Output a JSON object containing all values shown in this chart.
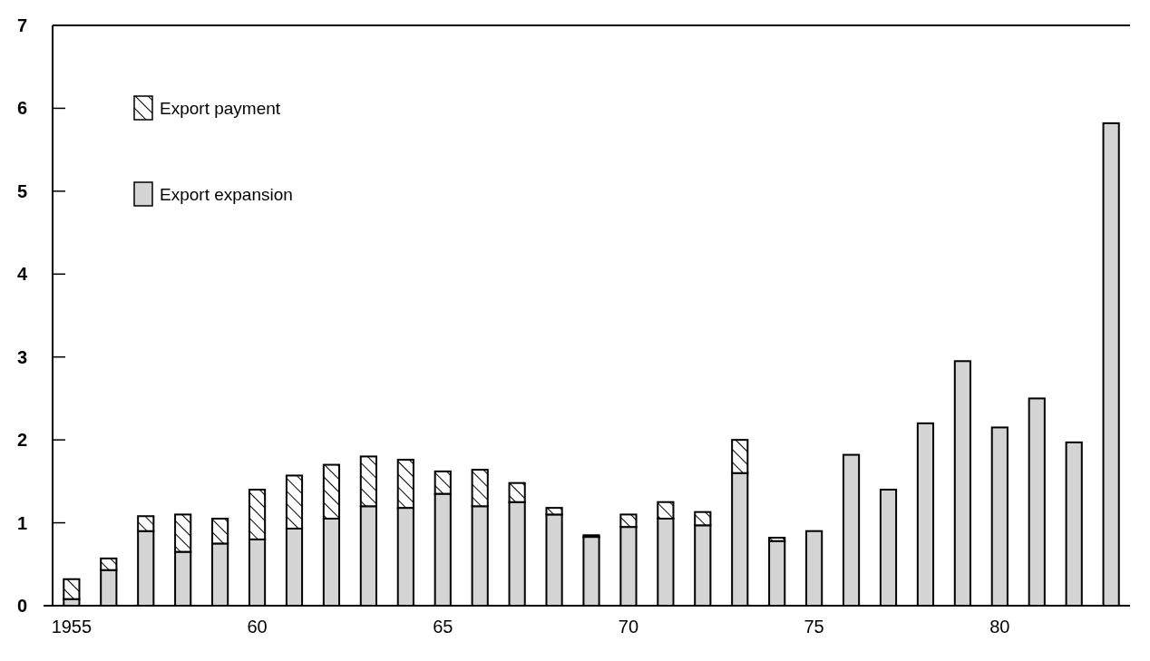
{
  "chart_data": {
    "type": "bar",
    "stacked": true,
    "categories": [
      "1955",
      null,
      null,
      null,
      null,
      "60",
      null,
      null,
      null,
      null,
      "65",
      null,
      null,
      null,
      null,
      "70",
      null,
      null,
      null,
      null,
      "75",
      null,
      null,
      null,
      null,
      "80",
      null,
      null,
      null
    ],
    "series": [
      {
        "name": "Export expansion",
        "color": "#d4d4d4",
        "values": [
          0.08,
          0.43,
          0.9,
          0.65,
          0.75,
          0.8,
          0.93,
          1.05,
          1.2,
          1.18,
          1.35,
          1.2,
          1.25,
          1.1,
          0.83,
          0.95,
          1.05,
          0.97,
          1.6,
          0.78,
          0.9,
          1.82,
          1.4,
          2.2,
          2.95,
          2.15,
          2.5,
          1.97,
          5.82
        ]
      },
      {
        "name": "Export payment",
        "color": "#000000",
        "values": [
          0.24,
          0.14,
          0.18,
          0.45,
          0.3,
          0.6,
          0.64,
          0.65,
          0.6,
          0.58,
          0.27,
          0.44,
          0.23,
          0.08,
          0.02,
          0.15,
          0.2,
          0.16,
          0.4,
          0.04,
          0,
          0,
          0,
          0,
          0,
          0,
          0,
          0,
          0
        ]
      }
    ],
    "ylim": [
      0,
      7
    ],
    "yticks": [
      0,
      1,
      2,
      3,
      4,
      5,
      6,
      7
    ],
    "legend": "top left"
  }
}
